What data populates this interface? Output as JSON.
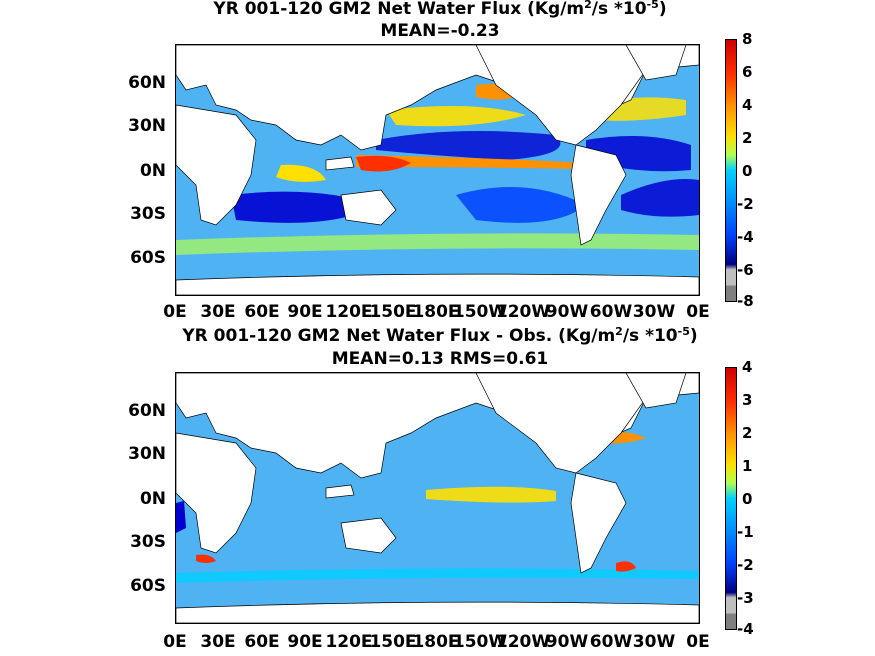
{
  "panel_top": {
    "title_prefix": "YR 001-120 GM2  Net Water Flux (Kg/m",
    "title_sup1": "2",
    "title_mid": "/s *10",
    "title_sup2": "-5",
    "title_suffix": ")",
    "subtitle": "MEAN=-0.23",
    "colorbar": {
      "ticks": [
        "8",
        "6",
        "4",
        "2",
        "0",
        "-2",
        "-4",
        "-6",
        "-8"
      ],
      "range": [
        -8,
        8
      ]
    }
  },
  "panel_bottom": {
    "title_prefix": "YR 001-120 GM2  Net Water Flux - Obs. (Kg/m",
    "title_sup1": "2",
    "title_mid": "/s *10",
    "title_sup2": "-5",
    "title_suffix": ")",
    "subtitle": "MEAN=0.13 RMS=0.61",
    "colorbar": {
      "ticks": [
        "4",
        "3",
        "2",
        "1",
        "0",
        "-1",
        "-2",
        "-3",
        "-4"
      ],
      "range": [
        -4,
        4
      ]
    }
  },
  "axes": {
    "lat_ticks": [
      "60N",
      "30N",
      "0N",
      "30S",
      "60S"
    ],
    "lon_ticks": [
      "0E",
      "30E",
      "60E",
      "90E",
      "120E",
      "150E",
      "180E",
      "150W",
      "120W",
      "90W",
      "60W",
      "30W",
      "0E"
    ]
  },
  "colors": {
    "ocean_base": "#4fb2f3",
    "land": "#ffffff",
    "colormap": [
      "#7f7f7f",
      "#bfbfbf",
      "#00007f",
      "#0000d0",
      "#0040ff",
      "#0090ff",
      "#00d0ff",
      "#40ffbf",
      "#b0ff50",
      "#ffe000",
      "#ff9000",
      "#ff3000",
      "#d00000"
    ]
  }
}
